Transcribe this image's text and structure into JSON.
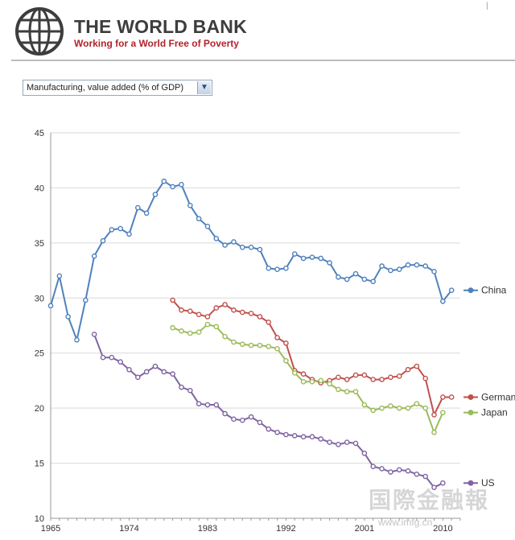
{
  "header": {
    "title": "THE WORLD BANK",
    "tagline": "Working for a World Free of Poverty"
  },
  "indicator": {
    "selected": "Manufacturing, value added (% of GDP)"
  },
  "watermark": {
    "text": "国際金融報",
    "sub": "www.imfg.cn"
  },
  "chart_data": {
    "type": "line",
    "title": "",
    "xlabel": "",
    "ylabel": "",
    "xlim": [
      1965,
      2012
    ],
    "ylim": [
      10,
      45
    ],
    "x_ticks": [
      1965,
      1974,
      1983,
      1992,
      2001,
      2010
    ],
    "y_ticks": [
      10,
      15,
      20,
      25,
      30,
      35,
      40,
      45
    ],
    "grid": "horizontal",
    "legend": "inline labels at line ends",
    "series": [
      {
        "name": "China",
        "color": "#4f81bd",
        "x": [
          1965,
          1966,
          1967,
          1968,
          1969,
          1970,
          1971,
          1972,
          1973,
          1974,
          1975,
          1976,
          1977,
          1978,
          1979,
          1980,
          1981,
          1982,
          1983,
          1984,
          1985,
          1986,
          1987,
          1988,
          1989,
          1990,
          1991,
          1992,
          1993,
          1994,
          1995,
          1996,
          1997,
          1998,
          1999,
          2000,
          2001,
          2002,
          2003,
          2004,
          2005,
          2006,
          2007,
          2008,
          2009,
          2010,
          2011
        ],
        "values": [
          29.3,
          32.0,
          28.3,
          26.2,
          29.8,
          33.8,
          35.2,
          36.2,
          36.3,
          35.8,
          38.2,
          37.7,
          39.4,
          40.6,
          40.1,
          40.3,
          38.4,
          37.2,
          36.5,
          35.4,
          34.8,
          35.1,
          34.6,
          34.6,
          34.4,
          32.7,
          32.6,
          32.7,
          34.0,
          33.6,
          33.7,
          33.6,
          33.2,
          31.9,
          31.7,
          32.2,
          31.7,
          31.5,
          32.9,
          32.5,
          32.6,
          33.0,
          33.0,
          32.9,
          32.4,
          29.7,
          30.7
        ]
      },
      {
        "name": "Germany",
        "color": "#c0504d",
        "x": [
          1979,
          1980,
          1981,
          1982,
          1983,
          1984,
          1985,
          1986,
          1987,
          1988,
          1989,
          1990,
          1991,
          1992,
          1993,
          1994,
          1995,
          1996,
          1997,
          1998,
          1999,
          2000,
          2001,
          2002,
          2003,
          2004,
          2005,
          2006,
          2007,
          2008,
          2009,
          2010,
          2011
        ],
        "values": [
          29.8,
          28.9,
          28.8,
          28.5,
          28.3,
          29.1,
          29.4,
          28.9,
          28.7,
          28.6,
          28.3,
          27.8,
          26.4,
          25.9,
          23.4,
          23.1,
          22.6,
          22.3,
          22.5,
          22.8,
          22.6,
          23.0,
          23.0,
          22.6,
          22.6,
          22.8,
          22.9,
          23.5,
          23.8,
          22.7,
          19.4,
          21.0,
          21.0
        ]
      },
      {
        "name": "Japan",
        "color": "#9bbb59",
        "x": [
          1979,
          1980,
          1981,
          1982,
          1983,
          1984,
          1985,
          1986,
          1987,
          1988,
          1989,
          1990,
          1991,
          1992,
          1993,
          1994,
          1995,
          1996,
          1997,
          1998,
          1999,
          2000,
          2001,
          2002,
          2003,
          2004,
          2005,
          2006,
          2007,
          2008,
          2009,
          2010
        ],
        "values": [
          27.3,
          27.0,
          26.8,
          26.9,
          27.6,
          27.4,
          26.5,
          26.0,
          25.8,
          25.7,
          25.7,
          25.6,
          25.4,
          24.3,
          23.2,
          22.4,
          22.4,
          22.5,
          22.2,
          21.7,
          21.5,
          21.5,
          20.3,
          19.8,
          20.0,
          20.2,
          20.0,
          20.0,
          20.4,
          20.0,
          17.8,
          19.6
        ]
      },
      {
        "name": "US",
        "color": "#8064a2",
        "x": [
          1970,
          1971,
          1972,
          1973,
          1974,
          1975,
          1976,
          1977,
          1978,
          1979,
          1980,
          1981,
          1982,
          1983,
          1984,
          1985,
          1986,
          1987,
          1988,
          1989,
          1990,
          1991,
          1992,
          1993,
          1994,
          1995,
          1996,
          1997,
          1998,
          1999,
          2000,
          2001,
          2002,
          2003,
          2004,
          2005,
          2006,
          2007,
          2008,
          2009,
          2010
        ],
        "values": [
          26.7,
          24.6,
          24.6,
          24.2,
          23.5,
          22.8,
          23.3,
          23.8,
          23.3,
          23.1,
          21.9,
          21.6,
          20.4,
          20.3,
          20.3,
          19.5,
          19.0,
          18.9,
          19.2,
          18.7,
          18.1,
          17.8,
          17.6,
          17.5,
          17.4,
          17.4,
          17.2,
          16.9,
          16.7,
          16.9,
          16.8,
          15.9,
          14.7,
          14.5,
          14.2,
          14.4,
          14.3,
          14.0,
          13.8,
          12.8,
          13.2
        ]
      }
    ]
  }
}
